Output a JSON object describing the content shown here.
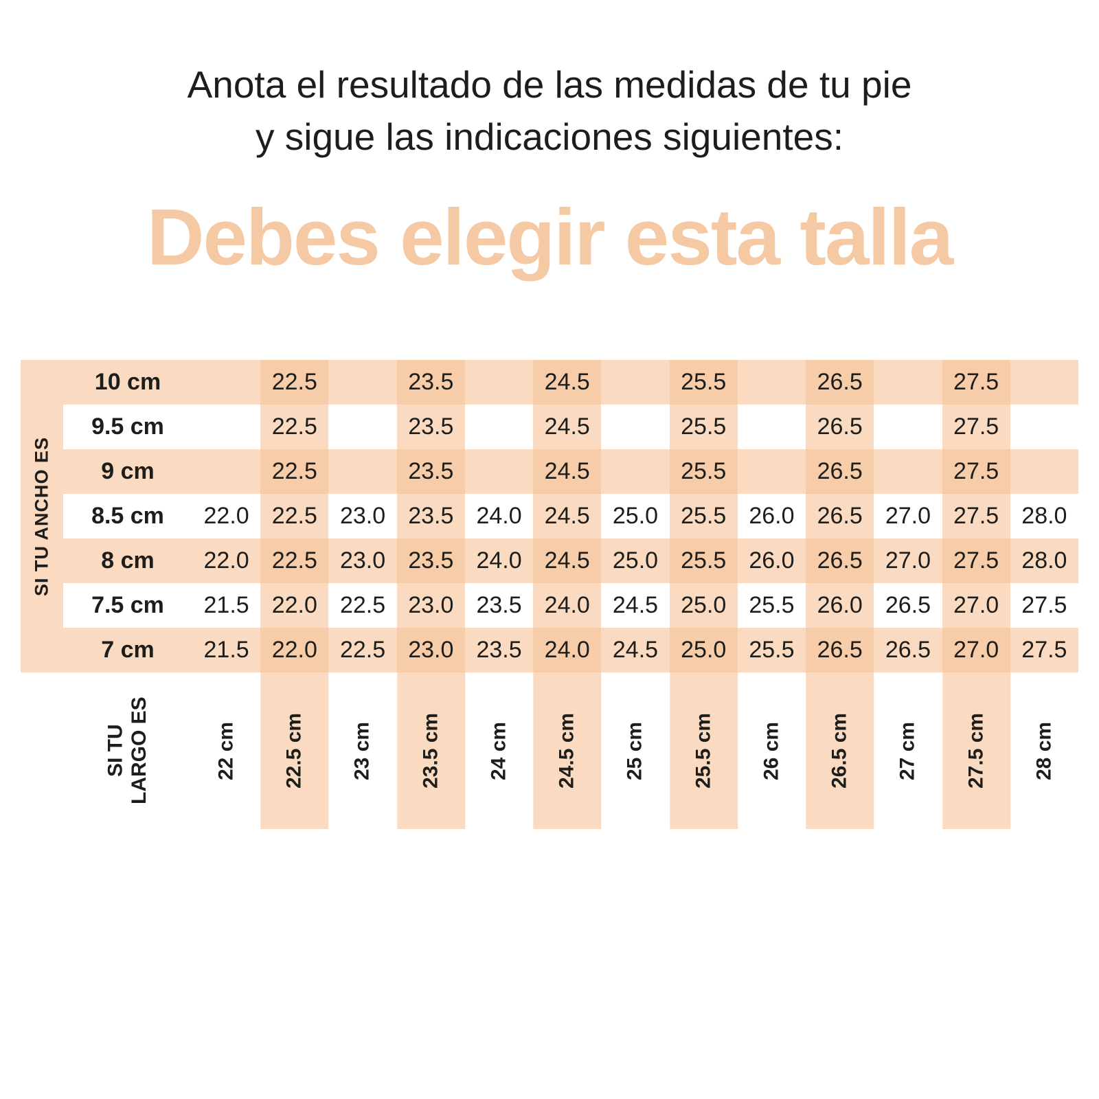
{
  "header": {
    "title_line1": "Anota el resultado de las medidas de tu pie",
    "title_line2": "y sigue las indicaciones siguientes:",
    "heading": "Debes elegir esta talla"
  },
  "colors": {
    "heading_text": "#f5c9a4",
    "stripe": "#fadbc1",
    "stripe_intersection": "#f6cda8",
    "text": "#1d1d1b"
  },
  "chart_data": {
    "type": "table",
    "title": "Debes elegir esta talla",
    "row_axis_label": "SI TU ANCHO ES",
    "col_axis_label": "SI TU\nLARGO ES",
    "row_headers": [
      "10 cm",
      "9.5 cm",
      "9 cm",
      "8.5 cm",
      "8 cm",
      "7.5 cm",
      "7 cm"
    ],
    "col_headers": [
      "22 cm",
      "22.5 cm",
      "23 cm",
      "23.5 cm",
      "24 cm",
      "24.5 cm",
      "25 cm",
      "25.5 cm",
      "26 cm",
      "26.5 cm",
      "27 cm",
      "27.5 cm",
      "28 cm"
    ],
    "cells": [
      [
        "",
        "22.5",
        "",
        "23.5",
        "",
        "24.5",
        "",
        "25.5",
        "",
        "26.5",
        "",
        "27.5",
        ""
      ],
      [
        "",
        "22.5",
        "",
        "23.5",
        "",
        "24.5",
        "",
        "25.5",
        "",
        "26.5",
        "",
        "27.5",
        ""
      ],
      [
        "",
        "22.5",
        "",
        "23.5",
        "",
        "24.5",
        "",
        "25.5",
        "",
        "26.5",
        "",
        "27.5",
        ""
      ],
      [
        "22.0",
        "22.5",
        "23.0",
        "23.5",
        "24.0",
        "24.5",
        "25.0",
        "25.5",
        "26.0",
        "26.5",
        "27.0",
        "27.5",
        "28.0"
      ],
      [
        "22.0",
        "22.5",
        "23.0",
        "23.5",
        "24.0",
        "24.5",
        "25.0",
        "25.5",
        "26.0",
        "26.5",
        "27.0",
        "27.5",
        "28.0"
      ],
      [
        "21.5",
        "22.0",
        "22.5",
        "23.0",
        "23.5",
        "24.0",
        "24.5",
        "25.0",
        "25.5",
        "26.0",
        "26.5",
        "27.0",
        "27.5"
      ],
      [
        "21.5",
        "22.0",
        "22.5",
        "23.0",
        "23.5",
        "24.0",
        "24.5",
        "25.0",
        "25.5",
        "26.5",
        "26.5",
        "27.0",
        "27.5"
      ]
    ]
  }
}
